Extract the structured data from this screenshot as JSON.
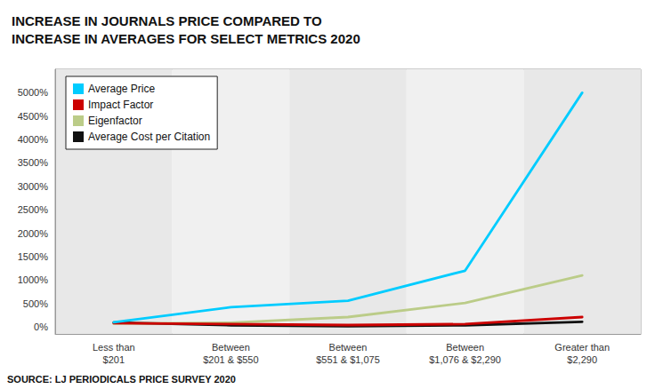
{
  "chart_data": {
    "type": "line",
    "title": "INCREASE IN JOURNALS PRICE COMPARED TO\nINCREASE IN AVERAGES FOR SELECT METRICS 2020",
    "annotation": "SOURCE: LJ PERIODICALS PRICE SURVEY 2020",
    "categories": [
      "Less than\n$201",
      "Between\n$201 & $550",
      "Between\n$551 & $1,075",
      "Between\n$1,076 & $2,290",
      "Greater than\n$2,290"
    ],
    "series": [
      {
        "name": "Average Price",
        "color": "#00CCFF",
        "values": [
          100,
          420,
          560,
          1200,
          5000
        ]
      },
      {
        "name": "Impact Factor",
        "color": "#CC0000",
        "values": [
          80,
          60,
          40,
          60,
          210
        ]
      },
      {
        "name": "Eigenfactor",
        "color": "#BBCC88",
        "values": [
          70,
          90,
          210,
          510,
          1100
        ]
      },
      {
        "name": "Average Cost per Citation",
        "color": "#111111",
        "values": [
          95,
          35,
          15,
          35,
          110
        ]
      }
    ],
    "ylim": [
      -150,
      5500
    ],
    "yticks": [
      {
        "value": 0,
        "label": "0%"
      },
      {
        "value": 500,
        "label": "500%"
      },
      {
        "value": 1000,
        "label": "1000%"
      },
      {
        "value": 1500,
        "label": "1500%"
      },
      {
        "value": 2000,
        "label": "2000%"
      },
      {
        "value": 2500,
        "label": "2500%"
      },
      {
        "value": 3000,
        "label": "3000%"
      },
      {
        "value": 3500,
        "label": "3500%"
      },
      {
        "value": 4000,
        "label": "4000%"
      },
      {
        "value": 4500,
        "label": "4500%"
      },
      {
        "value": 5000,
        "label": "5000%"
      }
    ],
    "grid": true,
    "legend": "upper left"
  }
}
